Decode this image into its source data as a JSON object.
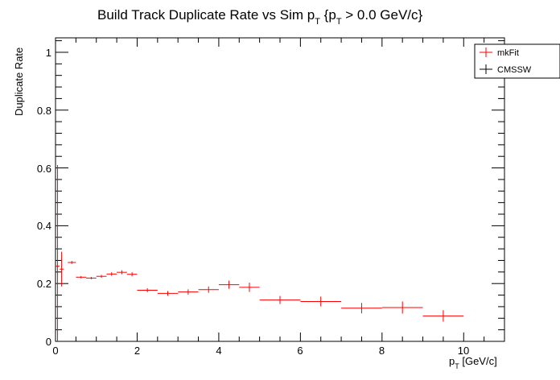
{
  "chart_data": {
    "type": "scatter",
    "title_parts": [
      "Build Track Duplicate Rate vs Sim p",
      "T",
      " {p",
      "T",
      " > 0.0 GeV/c}"
    ],
    "xlabel_parts": [
      "p",
      "T",
      " [GeV/c]"
    ],
    "ylabel": "Duplicate Rate",
    "xlim": [
      0,
      11
    ],
    "ylim": [
      0,
      1.05
    ],
    "x_ticks": [
      "0",
      "2",
      "4",
      "6",
      "8",
      "10"
    ],
    "y_ticks": [
      "0",
      "0.2",
      "0.4",
      "0.6",
      "0.8",
      "1"
    ],
    "legend_position": "top-right",
    "series": [
      {
        "name": "mkFit",
        "color": "#ff0000",
        "points": [
          {
            "x": 0.05,
            "xerr": 0.05,
            "y": 0.26,
            "yerr": 0.35
          },
          {
            "x": 0.15,
            "xerr": 0.05,
            "y": 0.25,
            "yerr": 0.06
          },
          {
            "x": 0.4,
            "xerr": 0.1,
            "y": 0.273,
            "yerr": 0.005
          },
          {
            "x": 0.625,
            "xerr": 0.125,
            "y": 0.222,
            "yerr": 0.004
          },
          {
            "x": 0.875,
            "xerr": 0.125,
            "y": 0.219,
            "yerr": 0.004
          },
          {
            "x": 1.125,
            "xerr": 0.125,
            "y": 0.225,
            "yerr": 0.005
          },
          {
            "x": 1.375,
            "xerr": 0.125,
            "y": 0.233,
            "yerr": 0.006
          },
          {
            "x": 1.625,
            "xerr": 0.125,
            "y": 0.239,
            "yerr": 0.007
          },
          {
            "x": 1.875,
            "xerr": 0.125,
            "y": 0.232,
            "yerr": 0.007
          },
          {
            "x": 2.25,
            "xerr": 0.25,
            "y": 0.177,
            "yerr": 0.007
          },
          {
            "x": 2.75,
            "xerr": 0.25,
            "y": 0.166,
            "yerr": 0.008
          },
          {
            "x": 3.25,
            "xerr": 0.25,
            "y": 0.171,
            "yerr": 0.009
          },
          {
            "x": 3.75,
            "xerr": 0.25,
            "y": 0.179,
            "yerr": 0.011
          },
          {
            "x": 4.25,
            "xerr": 0.25,
            "y": 0.196,
            "yerr": 0.014
          },
          {
            "x": 4.75,
            "xerr": 0.25,
            "y": 0.187,
            "yerr": 0.016
          },
          {
            "x": 5.5,
            "xerr": 0.5,
            "y": 0.143,
            "yerr": 0.014
          },
          {
            "x": 6.5,
            "xerr": 0.5,
            "y": 0.138,
            "yerr": 0.017
          },
          {
            "x": 7.5,
            "xerr": 0.5,
            "y": 0.115,
            "yerr": 0.018
          },
          {
            "x": 8.5,
            "xerr": 0.5,
            "y": 0.117,
            "yerr": 0.021
          },
          {
            "x": 9.5,
            "xerr": 0.5,
            "y": 0.088,
            "yerr": 0.02
          }
        ]
      },
      {
        "name": "CMSSW",
        "color": "#000000",
        "points": []
      }
    ]
  }
}
